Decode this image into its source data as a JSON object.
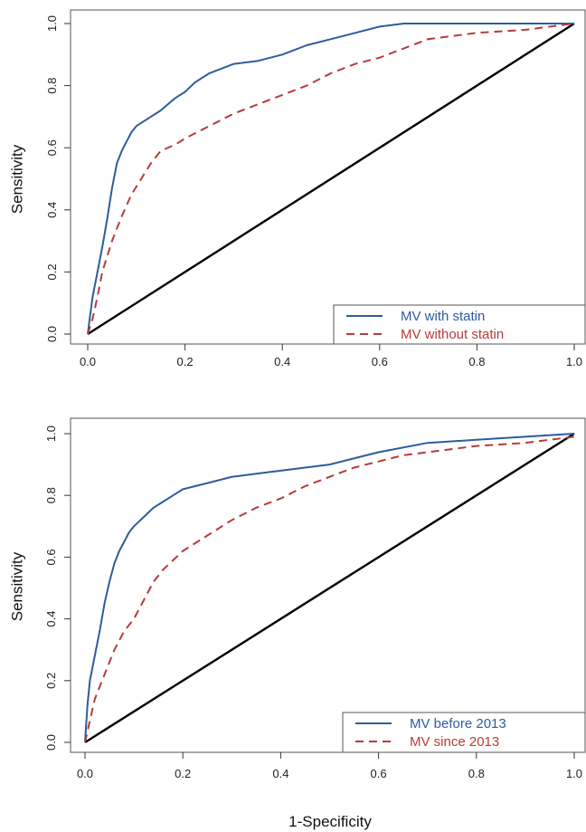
{
  "chart_data": [
    {
      "type": "line",
      "xlabel": "",
      "ylabel": "Sensitivity",
      "xlim": [
        0,
        1
      ],
      "ylim": [
        0,
        1
      ],
      "xticks": [
        "0.0",
        "0.2",
        "0.4",
        "0.6",
        "0.8",
        "1.0"
      ],
      "yticks": [
        "0.0",
        "0.2",
        "0.4",
        "0.6",
        "0.8",
        "1.0"
      ],
      "legend_position": "bottom-right",
      "reference_line": {
        "x": [
          0,
          1
        ],
        "y": [
          0,
          1
        ],
        "color": "#000000"
      },
      "series": [
        {
          "name": "MV with statin",
          "color": "#2E5C9E",
          "style": "solid",
          "x": [
            0,
            0.005,
            0.01,
            0.02,
            0.03,
            0.04,
            0.05,
            0.06,
            0.07,
            0.08,
            0.09,
            0.1,
            0.12,
            0.15,
            0.18,
            0.2,
            0.22,
            0.25,
            0.3,
            0.35,
            0.4,
            0.45,
            0.5,
            0.55,
            0.6,
            0.65,
            0.7,
            0.8,
            0.9,
            1.0
          ],
          "y": [
            0,
            0.06,
            0.12,
            0.2,
            0.28,
            0.37,
            0.47,
            0.55,
            0.59,
            0.62,
            0.65,
            0.67,
            0.69,
            0.72,
            0.76,
            0.78,
            0.81,
            0.84,
            0.87,
            0.88,
            0.9,
            0.93,
            0.95,
            0.97,
            0.99,
            1.0,
            1.0,
            1.0,
            1.0,
            1.0
          ]
        },
        {
          "name": "MV without statin",
          "color": "#B83A3A",
          "style": "dashed",
          "x": [
            0,
            0.01,
            0.02,
            0.03,
            0.05,
            0.07,
            0.09,
            0.11,
            0.13,
            0.15,
            0.18,
            0.2,
            0.25,
            0.3,
            0.35,
            0.4,
            0.45,
            0.5,
            0.55,
            0.6,
            0.65,
            0.7,
            0.8,
            0.9,
            0.95,
            1.0
          ],
          "y": [
            0,
            0.05,
            0.12,
            0.2,
            0.3,
            0.38,
            0.45,
            0.5,
            0.55,
            0.59,
            0.61,
            0.63,
            0.67,
            0.71,
            0.74,
            0.77,
            0.8,
            0.84,
            0.87,
            0.89,
            0.92,
            0.95,
            0.97,
            0.98,
            0.99,
            1.0
          ]
        }
      ]
    },
    {
      "type": "line",
      "xlabel": "1-Specificity",
      "ylabel": "Sensitivity",
      "xlim": [
        0,
        1
      ],
      "ylim": [
        0,
        1
      ],
      "xticks": [
        "0.0",
        "0.2",
        "0.4",
        "0.6",
        "0.8",
        "1.0"
      ],
      "yticks": [
        "0.0",
        "0.2",
        "0.4",
        "0.6",
        "0.8",
        "1.0"
      ],
      "legend_position": "bottom-right",
      "reference_line": {
        "x": [
          0,
          1
        ],
        "y": [
          0,
          1
        ],
        "color": "#000000"
      },
      "series": [
        {
          "name": "MV before 2013",
          "color": "#2E5C9E",
          "style": "solid",
          "x": [
            0,
            0.005,
            0.01,
            0.02,
            0.03,
            0.04,
            0.05,
            0.06,
            0.07,
            0.08,
            0.09,
            0.1,
            0.12,
            0.14,
            0.16,
            0.18,
            0.2,
            0.25,
            0.3,
            0.35,
            0.4,
            0.5,
            0.6,
            0.7,
            0.8,
            0.9,
            1.0
          ],
          "y": [
            0,
            0.12,
            0.2,
            0.28,
            0.36,
            0.45,
            0.52,
            0.58,
            0.62,
            0.65,
            0.68,
            0.7,
            0.73,
            0.76,
            0.78,
            0.8,
            0.82,
            0.84,
            0.86,
            0.87,
            0.88,
            0.9,
            0.94,
            0.97,
            0.98,
            0.99,
            1.0
          ]
        },
        {
          "name": "MV since 2013",
          "color": "#B83A3A",
          "style": "dashed",
          "x": [
            0,
            0.01,
            0.02,
            0.04,
            0.06,
            0.08,
            0.1,
            0.12,
            0.14,
            0.16,
            0.18,
            0.2,
            0.25,
            0.3,
            0.35,
            0.4,
            0.45,
            0.5,
            0.55,
            0.6,
            0.65,
            0.7,
            0.8,
            0.9,
            1.0
          ],
          "y": [
            0,
            0.07,
            0.14,
            0.22,
            0.3,
            0.36,
            0.4,
            0.46,
            0.52,
            0.56,
            0.59,
            0.62,
            0.67,
            0.72,
            0.76,
            0.79,
            0.83,
            0.86,
            0.89,
            0.91,
            0.93,
            0.94,
            0.96,
            0.97,
            0.99
          ]
        }
      ]
    }
  ]
}
